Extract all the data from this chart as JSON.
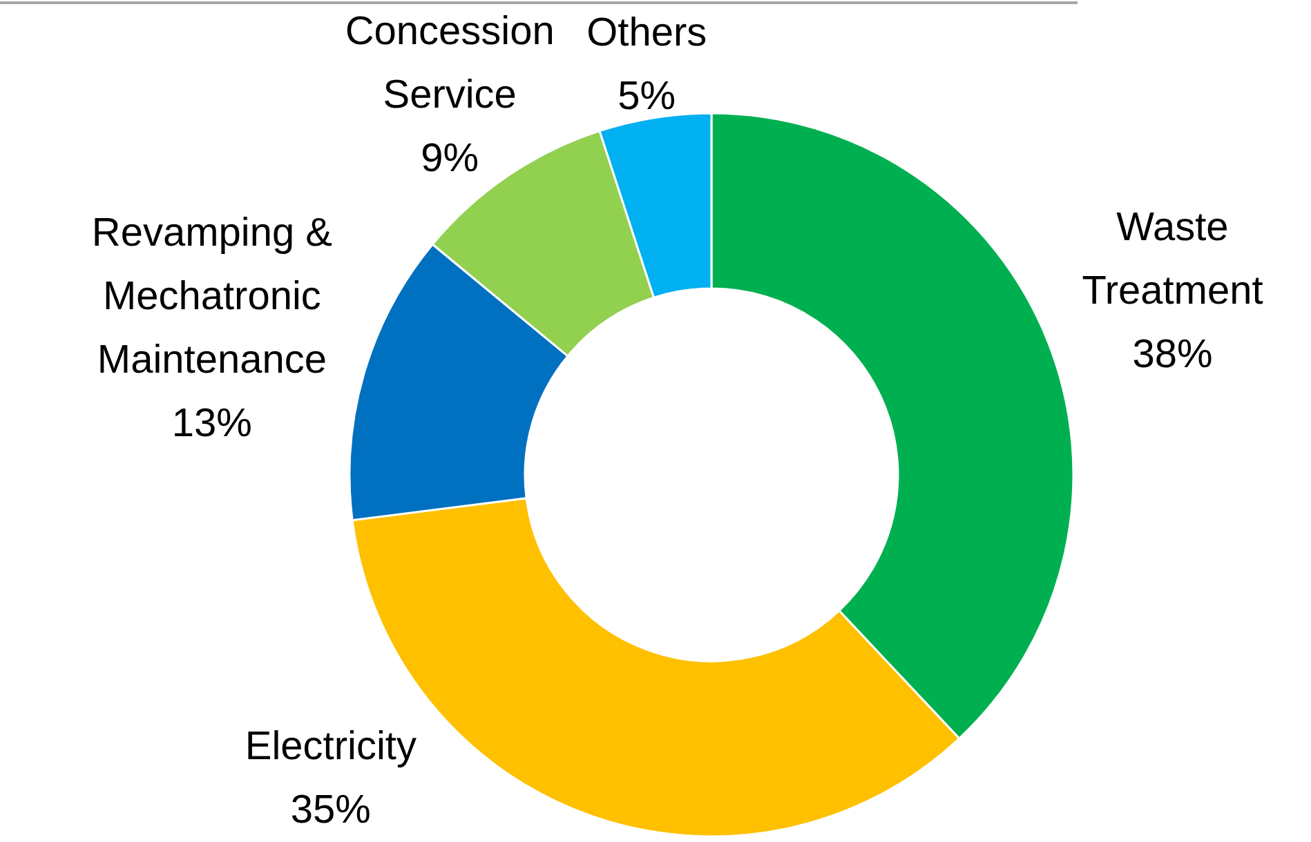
{
  "chart_data": {
    "type": "donut",
    "categories": [
      "Waste Treatment",
      "Electricity",
      "Revamping & Mechatronic Maintenance",
      "Concession Service",
      "Others"
    ],
    "values": [
      38,
      35,
      13,
      9,
      5
    ],
    "value_labels": [
      "38%",
      "35%",
      "13%",
      "9%",
      "5%"
    ],
    "colors": [
      "#00b050",
      "#ffc000",
      "#0070c0",
      "#92d050",
      "#00b0f0"
    ],
    "legend": false
  }
}
